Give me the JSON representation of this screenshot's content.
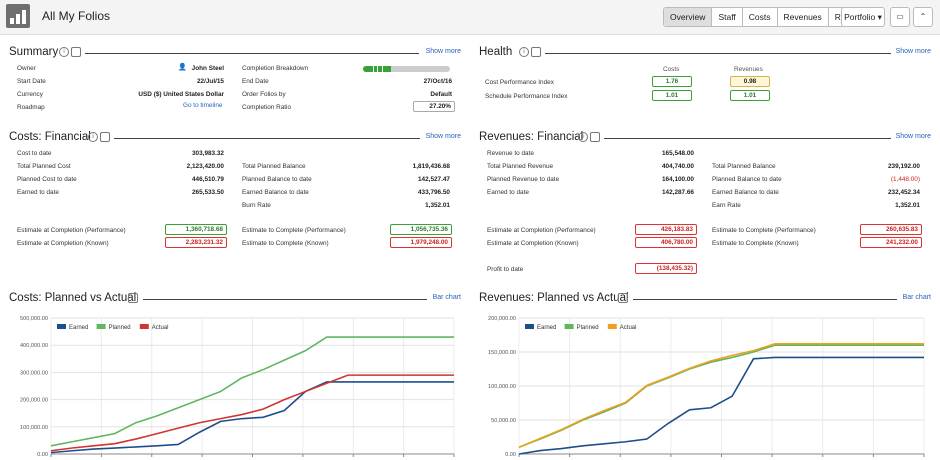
{
  "header": {
    "title": "All My Folios",
    "tabs": [
      "Overview",
      "Staff",
      "Costs",
      "Revenues",
      "Report"
    ],
    "active_tab": "Overview",
    "portfolio_label": "Portfolio",
    "monitor_icon": "monitor-icon",
    "collapse_icon": "chevron-up-icon"
  },
  "summary": {
    "title": "Summary",
    "show_more": "Show more",
    "owner_label": "Owner",
    "owner_value": "John Steel",
    "start_label": "Start Date",
    "start_value": "22/Jul/15",
    "currency_label": "Currency",
    "currency_value": "USD ($) United States Dollar",
    "roadmap_label": "Roadmap",
    "roadmap_link": "Go to timeline",
    "breakdown_label": "Completion Breakdown",
    "breakdown_fraction": 0.32,
    "end_label": "End Date",
    "end_value": "27/Oct/16",
    "order_label": "Order Folios by",
    "order_value": "Default",
    "ratio_label": "Completion Ratio",
    "ratio_value": "27.20%"
  },
  "health": {
    "title": "Health",
    "show_more": "Show more",
    "col_costs": "Costs",
    "col_revenues": "Revenues",
    "rows": [
      {
        "label": "Cost Performance Index",
        "costs": "1.76",
        "revenues": "0.98"
      },
      {
        "label": "Schedule Performance Index",
        "costs": "1.01",
        "revenues": "1.01"
      }
    ]
  },
  "costs_financial": {
    "title": "Costs: Financial",
    "show_more": "Show more",
    "left": [
      {
        "label": "Cost to date",
        "value": "303,983.32"
      },
      {
        "label": "Total Planned Cost",
        "value": "2,123,420.00"
      },
      {
        "label": "Planned Cost to date",
        "value": "446,510.79"
      },
      {
        "label": "Earned to date",
        "value": "265,533.50"
      }
    ],
    "right": [
      {
        "label": "Total Planned Balance",
        "value": "1,819,436.68"
      },
      {
        "label": "Planned Balance to date",
        "value": "142,527.47"
      },
      {
        "label": "Earned Balance to date",
        "value": "433,796.50"
      },
      {
        "label": "Burn Rate",
        "value": "1,352.01"
      }
    ],
    "eac_perf_label": "Estimate at Completion (Performance)",
    "eac_perf_value": "1,360,718.68",
    "eac_known_label": "Estimate at Completion (Known)",
    "eac_known_value": "2,283,231.32",
    "etc_perf_label": "Estimate to Complete (Performance)",
    "etc_perf_value": "1,056,735.36",
    "etc_known_label": "Estimate to Complete (Known)",
    "etc_known_value": "1,979,248.00"
  },
  "revenues_financial": {
    "title": "Revenues: Financial",
    "show_more": "Show more",
    "left": [
      {
        "label": "Revenue to date",
        "value": "165,548.00"
      },
      {
        "label": "Total Planned Revenue",
        "value": "404,740.00"
      },
      {
        "label": "Planned Revenue to date",
        "value": "164,100.00"
      },
      {
        "label": "Earned to date",
        "value": "142,287.66"
      }
    ],
    "right": [
      {
        "label": "Total Planned Balance",
        "value": "239,192.00"
      },
      {
        "label": "Planned Balance to date",
        "value": "(1,448.00)"
      },
      {
        "label": "Earned Balance to date",
        "value": "232,452.34"
      },
      {
        "label": "Earn Rate",
        "value": "1,352.01"
      }
    ],
    "eac_perf_label": "Estimate at Completion (Performance)",
    "eac_perf_value": "426,183.83",
    "eac_known_label": "Estimate at Completion (Known)",
    "eac_known_value": "406,780.00",
    "etc_perf_label": "Estimate to Complete (Performance)",
    "etc_perf_value": "260,635.83",
    "etc_known_label": "Estimate to Complete (Known)",
    "etc_known_value": "241,232.00",
    "profit_label": "Profit to date",
    "profit_value": "(138,435.32)"
  },
  "costs_chart_section": {
    "title": "Costs: Planned vs Actual",
    "link": "Bar chart"
  },
  "revenues_chart_section": {
    "title": "Revenues: Planned vs Actual",
    "link": "Bar chart"
  },
  "chart_data": [
    {
      "type": "line",
      "title": "Costs: Planned vs Actual",
      "ylim": [
        0,
        500000
      ],
      "yticks": [
        "0.00",
        "100,000.00",
        "200,000.00",
        "300,000.00",
        "400,000.00",
        "500,000.00"
      ],
      "ytick_values": [
        0,
        100000,
        200000,
        300000,
        400000,
        500000
      ],
      "x": [
        0,
        1,
        2,
        3,
        4,
        5,
        6,
        7,
        8,
        9,
        10,
        11,
        12,
        13,
        14,
        15,
        16,
        17,
        18,
        19
      ],
      "series": [
        {
          "name": "Earned",
          "color": "#1f4e8c",
          "values": [
            5000,
            12000,
            18000,
            22000,
            26000,
            30000,
            35000,
            80000,
            120000,
            130000,
            135000,
            160000,
            230000,
            265000,
            265000,
            265000,
            265000,
            265000,
            265000,
            265000
          ]
        },
        {
          "name": "Planned",
          "color": "#5fb760",
          "values": [
            30000,
            45000,
            60000,
            75000,
            115000,
            140000,
            170000,
            200000,
            230000,
            280000,
            310000,
            345000,
            380000,
            430000,
            430000,
            430000,
            430000,
            430000,
            430000,
            430000
          ]
        },
        {
          "name": "Actual",
          "color": "#d0352f",
          "values": [
            12000,
            22000,
            30000,
            38000,
            55000,
            75000,
            95000,
            115000,
            130000,
            145000,
            165000,
            200000,
            230000,
            260000,
            290000,
            290000,
            290000,
            290000,
            290000,
            290000
          ]
        }
      ]
    },
    {
      "type": "line",
      "title": "Revenues: Planned vs Actual",
      "ylim": [
        0,
        200000
      ],
      "yticks": [
        "0.00",
        "50,000.00",
        "100,000.00",
        "150,000.00",
        "200,000.00"
      ],
      "ytick_values": [
        0,
        50000,
        100000,
        150000,
        200000
      ],
      "x": [
        0,
        1,
        2,
        3,
        4,
        5,
        6,
        7,
        8,
        9,
        10,
        11,
        12,
        13,
        14,
        15,
        16,
        17,
        18,
        19
      ],
      "series": [
        {
          "name": "Earned",
          "color": "#1f4e8c",
          "values": [
            0,
            5000,
            8000,
            12000,
            15000,
            18000,
            22000,
            45000,
            65000,
            68000,
            85000,
            140000,
            142000,
            142000,
            142000,
            142000,
            142000,
            142000,
            142000,
            142000
          ]
        },
        {
          "name": "Planned",
          "color": "#5fb760",
          "values": [
            10000,
            22000,
            35000,
            50000,
            62000,
            75000,
            100000,
            112000,
            125000,
            135000,
            142000,
            150000,
            160000,
            160000,
            160000,
            160000,
            160000,
            160000,
            160000,
            160000
          ]
        },
        {
          "name": "Actual",
          "color": "#f0a020",
          "values": [
            10000,
            23000,
            36000,
            51000,
            64000,
            76000,
            101000,
            113000,
            126000,
            137000,
            145000,
            152000,
            162000,
            162000,
            162000,
            162000,
            162000,
            162000,
            162000,
            162000
          ]
        }
      ]
    }
  ]
}
